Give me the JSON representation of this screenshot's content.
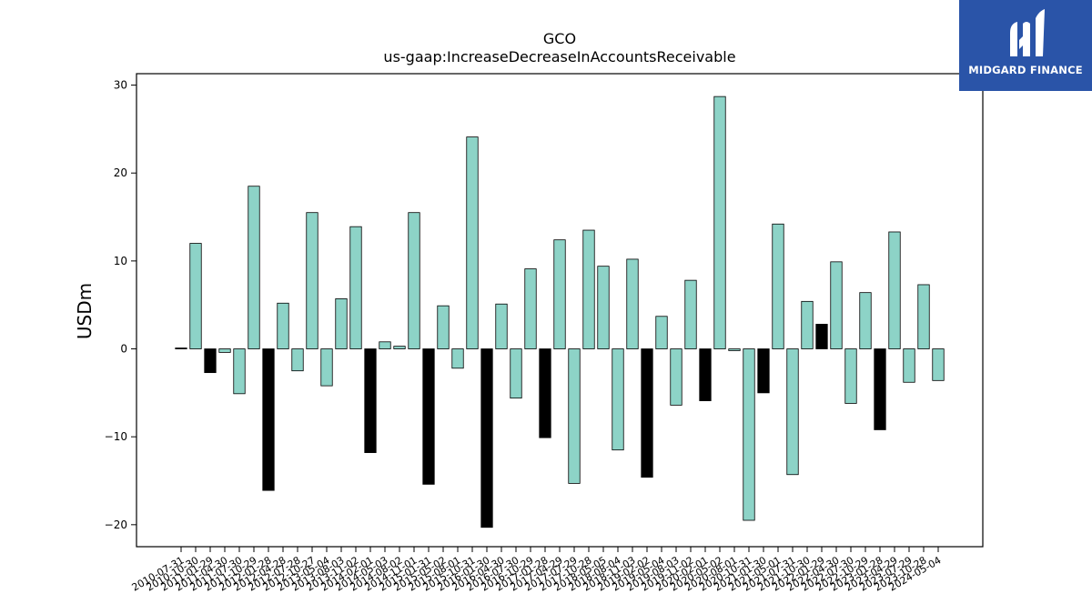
{
  "brand": {
    "name": "MIDGARD FINANCE",
    "logo_bg": "#2a54a8"
  },
  "chart_data": {
    "type": "bar",
    "title": "GCO",
    "subtitle": "us-gaap:IncreaseDecreaseInAccountsReceivable",
    "xlabel": "",
    "ylabel": "USDm",
    "ylim": [
      -22.5,
      31.3
    ],
    "yticks": [
      -20,
      -10,
      0,
      10,
      20,
      30
    ],
    "grid": false,
    "colors": {
      "positive_default": "#8dd3c7",
      "highlight": "#000000",
      "edge": "#000000"
    },
    "categories": [
      "2010-07-31",
      "2010-10-30",
      "2011-01-29",
      "2011-04-30",
      "2011-07-30",
      "2011-10-29",
      "2012-01-28",
      "2012-04-28",
      "2012-07-28",
      "2012-10-27",
      "2013-05-04",
      "2013-08-03",
      "2013-11-02",
      "2014-02-01",
      "2014-05-03",
      "2014-08-02",
      "2014-11-01",
      "2015-01-31",
      "2015-05-02",
      "2015-08-01",
      "2015-10-31",
      "2016-01-30",
      "2016-04-30",
      "2016-07-30",
      "2016-10-29",
      "2017-01-28",
      "2017-04-29",
      "2017-07-29",
      "2017-10-28",
      "2018-05-05",
      "2018-08-04",
      "2018-11-03",
      "2019-02-02",
      "2019-05-04",
      "2019-08-03",
      "2019-11-02",
      "2020-02-01",
      "2020-05-02",
      "2020-08-01",
      "2020-10-31",
      "2021-01-30",
      "2021-05-01",
      "2021-07-31",
      "2021-10-30",
      "2022-01-29",
      "2022-04-30",
      "2022-07-30",
      "2022-10-29",
      "2023-01-28",
      "2023-04-29",
      "2023-07-29",
      "2023-10-28",
      "2024-05-04"
    ],
    "values": [
      0.1,
      12.0,
      -2.7,
      -0.4,
      -5.1,
      18.5,
      -16.1,
      5.2,
      -2.5,
      15.5,
      -4.2,
      5.7,
      13.9,
      -11.8,
      0.8,
      0.3,
      15.5,
      -15.4,
      4.9,
      -2.2,
      24.1,
      -20.3,
      5.1,
      -5.6,
      9.1,
      -10.1,
      12.4,
      -15.3,
      13.5,
      9.4,
      -11.5,
      10.2,
      -14.6,
      3.7,
      -6.4,
      7.8,
      -5.9,
      28.7,
      -0.2,
      -19.5,
      -5.0,
      14.2,
      -14.3,
      5.4,
      2.8,
      9.9,
      -6.2,
      6.4,
      -9.2,
      13.3,
      -3.8,
      7.3,
      -3.6
    ],
    "highlight_black": [
      true,
      false,
      true,
      false,
      false,
      false,
      true,
      false,
      false,
      false,
      false,
      false,
      false,
      true,
      false,
      false,
      false,
      true,
      false,
      false,
      false,
      true,
      false,
      false,
      false,
      true,
      false,
      false,
      false,
      false,
      false,
      false,
      true,
      false,
      false,
      false,
      true,
      false,
      false,
      false,
      true,
      false,
      false,
      false,
      true,
      false,
      false,
      false,
      true,
      false,
      false,
      false,
      false
    ]
  }
}
